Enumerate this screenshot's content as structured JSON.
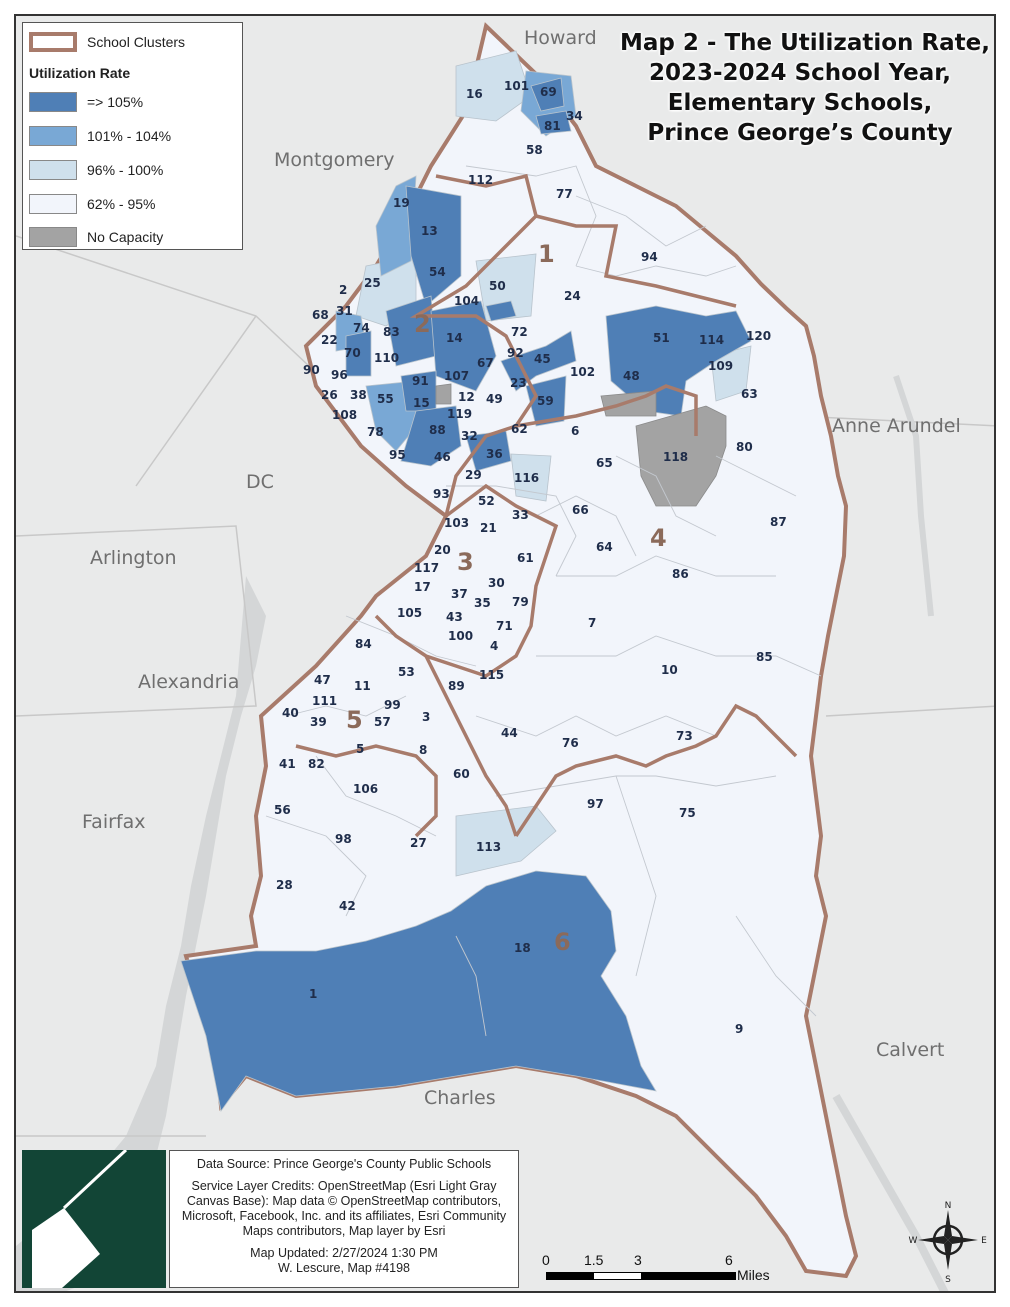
{
  "title": {
    "lines": [
      "Map 2 - The Utilization Rate,",
      "2023-2024 School Year,",
      "Elementary Schools,",
      "Prince George’s County"
    ]
  },
  "legend": {
    "clusters_label": "School Clusters",
    "heading": "Utilization Rate",
    "classes": [
      {
        "label": "=> 105%",
        "color": "#4f7fb6"
      },
      {
        "label": "101% - 104%",
        "color": "#79a8d5"
      },
      {
        "label": "96% - 100%",
        "color": "#cfe0ec"
      },
      {
        "label": "62% - 95%",
        "color": "#f2f5fb"
      },
      {
        "label": "No Capacity",
        "color": "#a3a3a3"
      }
    ],
    "cluster_line_color": "#a87b6b"
  },
  "regions": {
    "howard": "Howard",
    "montgomery": "Montgomery",
    "dc": "DC",
    "arlington": "Arlington",
    "alexandria": "Alexandria",
    "fairfax": "Fairfax",
    "charles": "Charles",
    "anne_arundel": "Anne Arundel",
    "calvert": "Calvert"
  },
  "clusters": [
    "1",
    "2",
    "3",
    "4",
    "5",
    "6"
  ],
  "schools": [
    "16",
    "101",
    "69",
    "34",
    "81",
    "58",
    "112",
    "77",
    "19",
    "13",
    "54",
    "25",
    "50",
    "104",
    "2",
    "31",
    "68",
    "74",
    "83",
    "14",
    "22",
    "70",
    "110",
    "72",
    "92",
    "45",
    "96",
    "90",
    "91",
    "67",
    "107",
    "23",
    "102",
    "26",
    "38",
    "55",
    "15",
    "12",
    "49",
    "59",
    "108",
    "78",
    "88",
    "119",
    "32",
    "62",
    "6",
    "36",
    "95",
    "46",
    "29",
    "116",
    "93",
    "52",
    "103",
    "21",
    "33",
    "66",
    "20",
    "117",
    "17",
    "61",
    "37",
    "30",
    "35",
    "79",
    "43",
    "105",
    "71",
    "100",
    "4",
    "84",
    "53",
    "47",
    "11",
    "89",
    "115",
    "111",
    "99",
    "40",
    "39",
    "57",
    "3",
    "5",
    "8",
    "41",
    "82",
    "60",
    "106",
    "56",
    "98",
    "27",
    "113",
    "28",
    "42",
    "18",
    "1",
    "94",
    "24",
    "51",
    "114",
    "120",
    "109",
    "48",
    "63",
    "118",
    "80",
    "65",
    "87",
    "64",
    "86",
    "7",
    "10",
    "85",
    "44",
    "76",
    "73",
    "97",
    "75",
    "9"
  ],
  "credits": {
    "source": "Data Source: Prince George's County Public Schools",
    "service": "Service Layer Credits: OpenStreetMap (Esri Light Gray Canvas Base): Map data © OpenStreetMap contributors, Microsoft, Facebook, Inc. and its affiliates, Esri Community Maps contributors, Map layer by Esri",
    "updated": "Map Updated: 2/27/2024 1:30 PM",
    "author": "W. Lescure, Map #4198"
  },
  "scale": {
    "ticks": [
      "0",
      "1.5",
      "3",
      "6"
    ],
    "unit": "Miles"
  },
  "compass": {
    "n": "N",
    "s": "S",
    "e": "E",
    "w": "W"
  }
}
